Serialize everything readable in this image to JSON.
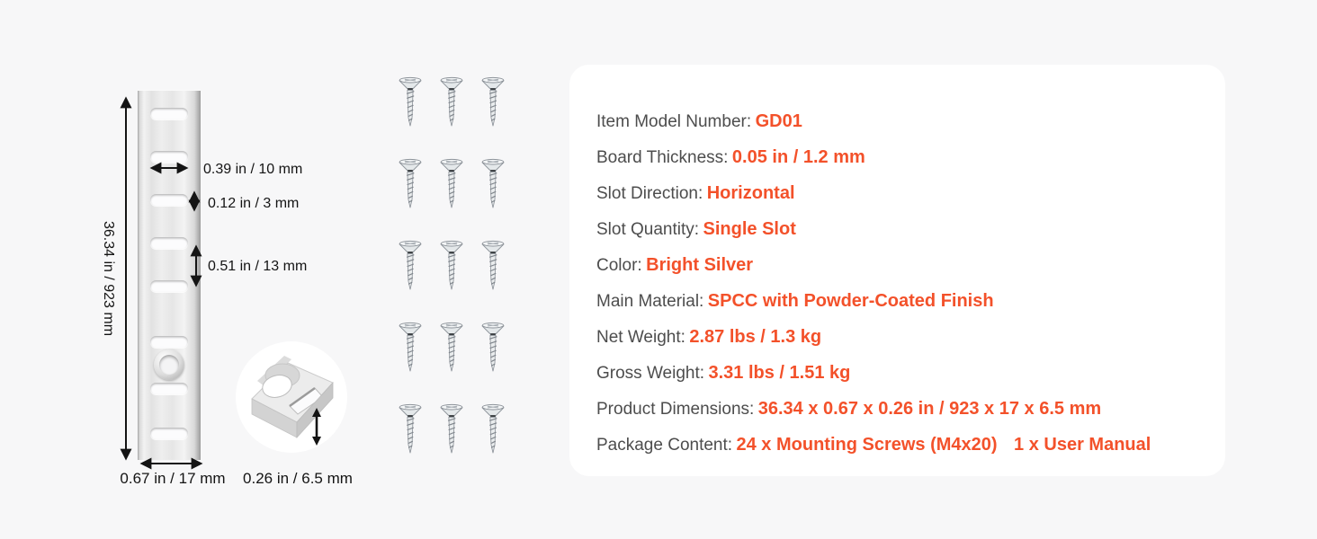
{
  "colors": {
    "background": "#f7f7f8",
    "card": "#ffffff",
    "accent": "#f3512a",
    "label": "#4d4d4d",
    "diagram_ink": "#141414"
  },
  "diagram": {
    "height_label": "36.34 in / 923 mm",
    "slot_width_label": "0.39 in / 10 mm",
    "slot_gap_label": "0.12 in / 3 mm",
    "slot_pitch_label": "0.51 in / 13 mm",
    "rail_width_label": "0.67 in / 17 mm",
    "depth_label": "0.26 in / 6.5 mm"
  },
  "screws_graphic": {
    "rows": 5,
    "cols": 3,
    "count": 15
  },
  "specs": {
    "items": [
      {
        "label": "Item Model Number:",
        "value": "GD01"
      },
      {
        "label": "Board Thickness:",
        "value": "0.05 in / 1.2 mm"
      },
      {
        "label": "Slot Direction:",
        "value": "Horizontal"
      },
      {
        "label": "Slot Quantity:",
        "value": "Single Slot"
      },
      {
        "label": "Color:",
        "value": "Bright Silver"
      },
      {
        "label": "Main Material:",
        "value": "SPCC with Powder-Coated Finish"
      },
      {
        "label": "Net Weight:",
        "value": "2.87 lbs / 1.3 kg"
      },
      {
        "label": "Gross Weight:",
        "value": "3.31 lbs / 1.51 kg"
      },
      {
        "label": "Product Dimensions:",
        "value": "36.34 x 0.67 x 0.26 in / 923 x 17 x 6.5 mm"
      },
      {
        "label": "Package Content:",
        "value": "24 x Mounting Screws (M4x20)",
        "value2": "1 x User Manual"
      }
    ]
  }
}
